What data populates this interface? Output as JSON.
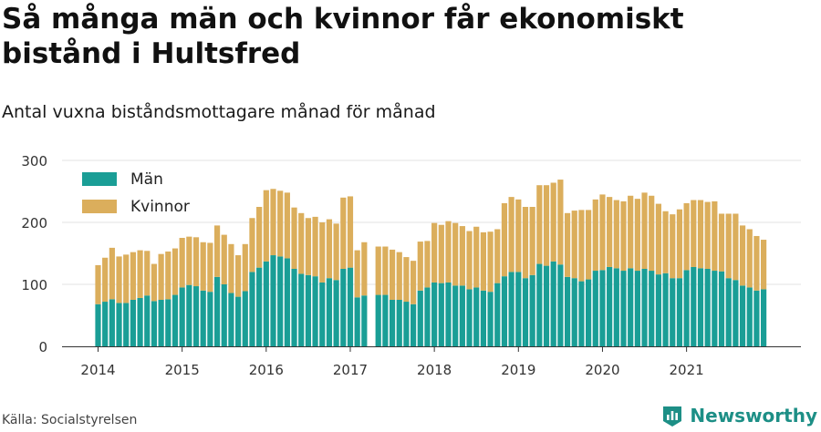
{
  "title": "Så många män och kvinnor får ekonomiskt bistånd i Hultsfred",
  "subtitle": "Antal vuxna biståndsmottagare månad för månad",
  "source": "Källa: Socialstyrelsen",
  "brand": {
    "name": "Newsworthy",
    "icon": "newsworthy-logo-icon",
    "color": "#1d8f86"
  },
  "chart_data": {
    "type": "bar",
    "stacked": true,
    "ylim": [
      0,
      300
    ],
    "yticks": [
      0,
      100,
      200,
      300
    ],
    "xticks": [
      "2014",
      "2015",
      "2016",
      "2017",
      "2018",
      "2019",
      "2020",
      "2021"
    ],
    "grid": true,
    "legend_position": "top-left",
    "colors": {
      "Män": "#1a9e96",
      "Kvinnor": "#dbae5c"
    },
    "months": [
      "2014-01",
      "2014-02",
      "2014-03",
      "2014-04",
      "2014-05",
      "2014-06",
      "2014-07",
      "2014-08",
      "2014-09",
      "2014-10",
      "2014-11",
      "2014-12",
      "2015-01",
      "2015-02",
      "2015-03",
      "2015-04",
      "2015-05",
      "2015-06",
      "2015-07",
      "2015-08",
      "2015-09",
      "2015-10",
      "2015-11",
      "2015-12",
      "2016-01",
      "2016-02",
      "2016-03",
      "2016-04",
      "2016-05",
      "2016-06",
      "2016-07",
      "2016-08",
      "2016-09",
      "2016-10",
      "2016-11",
      "2016-12",
      "2017-01",
      "2017-02",
      "2017-03",
      "2017-04",
      "2017-05",
      "2017-06",
      "2017-07",
      "2017-08",
      "2017-09",
      "2017-10",
      "2017-11",
      "2017-12",
      "2018-01",
      "2018-02",
      "2018-03",
      "2018-04",
      "2018-05",
      "2018-06",
      "2018-07",
      "2018-08",
      "2018-09",
      "2018-10",
      "2018-11",
      "2018-12",
      "2019-01",
      "2019-02",
      "2019-03",
      "2019-04",
      "2019-05",
      "2019-06",
      "2019-07",
      "2019-08",
      "2019-09",
      "2019-10",
      "2019-11",
      "2019-12",
      "2020-01",
      "2020-02",
      "2020-03",
      "2020-04",
      "2020-05",
      "2020-06",
      "2020-07",
      "2020-08",
      "2020-09",
      "2020-10",
      "2020-11",
      "2020-12",
      "2021-01",
      "2021-02",
      "2021-03",
      "2021-04",
      "2021-05",
      "2021-06",
      "2021-07",
      "2021-08",
      "2021-09",
      "2021-10",
      "2021-11",
      "2021-12"
    ],
    "series": [
      {
        "name": "Män",
        "values": [
          68,
          72,
          76,
          70,
          70,
          75,
          78,
          82,
          73,
          75,
          76,
          83,
          95,
          99,
          97,
          90,
          88,
          112,
          100,
          86,
          80,
          89,
          120,
          127,
          137,
          147,
          145,
          142,
          125,
          117,
          115,
          113,
          103,
          110,
          107,
          125,
          127,
          79,
          82,
          null,
          83,
          83,
          75,
          75,
          72,
          68,
          90,
          95,
          103,
          102,
          103,
          98,
          98,
          92,
          95,
          90,
          88,
          102,
          113,
          120,
          120,
          110,
          115,
          133,
          130,
          137,
          132,
          112,
          110,
          105,
          108,
          122,
          123,
          128,
          126,
          122,
          126,
          122,
          125,
          122,
          116,
          118,
          110,
          110,
          123,
          128,
          126,
          125,
          122,
          121,
          110,
          107,
          98,
          95,
          90,
          92
        ]
      },
      {
        "name": "Kvinnor",
        "values": [
          63,
          71,
          83,
          75,
          78,
          77,
          77,
          72,
          60,
          74,
          77,
          75,
          80,
          78,
          79,
          78,
          79,
          83,
          80,
          79,
          67,
          76,
          87,
          98,
          115,
          107,
          106,
          106,
          99,
          98,
          92,
          96,
          97,
          95,
          91,
          115,
          115,
          76,
          86,
          null,
          78,
          78,
          81,
          77,
          72,
          70,
          79,
          75,
          96,
          94,
          99,
          101,
          96,
          94,
          98,
          94,
          97,
          87,
          118,
          121,
          117,
          115,
          110,
          127,
          130,
          127,
          137,
          103,
          109,
          115,
          112,
          115,
          122,
          113,
          110,
          112,
          117,
          116,
          123,
          121,
          114,
          100,
          103,
          111,
          108,
          108,
          110,
          108,
          112,
          93,
          104,
          107,
          97,
          94,
          88,
          80
        ]
      }
    ]
  }
}
